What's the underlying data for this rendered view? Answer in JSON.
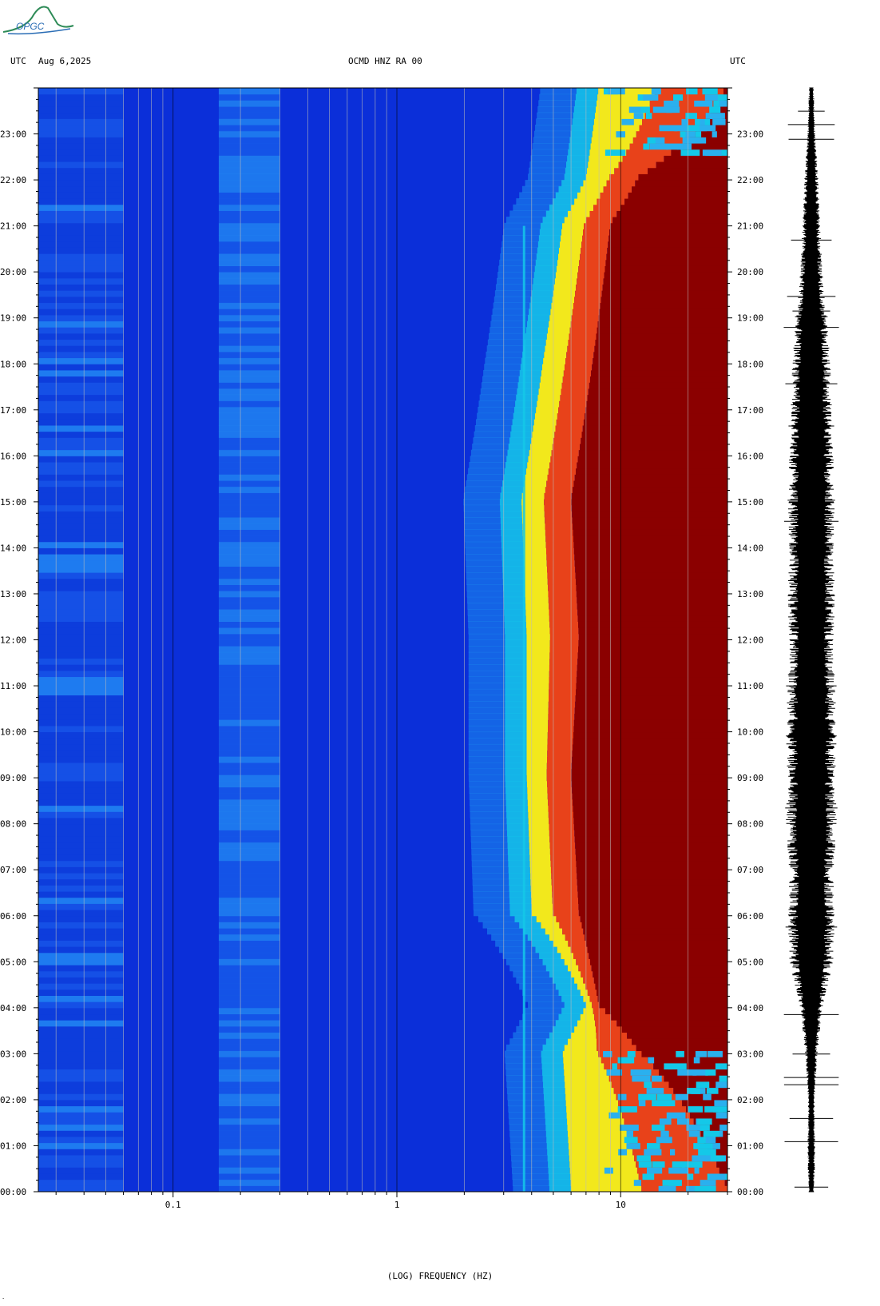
{
  "header": {
    "left_timezone": "UTC",
    "date": "Aug 6,2025",
    "station": "OCMD HNZ RA 00",
    "right_timezone": "UTC"
  },
  "logo": {
    "text": "OPGC"
  },
  "corner_mark": ".",
  "colors": {
    "background_blue": "#0b2fd9",
    "mid_cyan": "#14c8e8",
    "yellow": "#f2e81c",
    "dark_red": "#8b0000",
    "waveform": "#000000"
  },
  "chart_data": {
    "type": "heatmap",
    "title": "OCMD HNZ RA 00",
    "xlabel": "(LOG) FREQUENCY (HZ)",
    "ylabel": "",
    "x_scale": "log",
    "xlim": [
      0.025,
      30
    ],
    "x_ticks": [
      {
        "value": 0.1,
        "label": "0.1"
      },
      {
        "value": 1,
        "label": "1"
      },
      {
        "value": 10,
        "label": "10"
      }
    ],
    "ylim": [
      "00:00",
      "24:00"
    ],
    "y_ticks": [
      "00:00",
      "01:00",
      "02:00",
      "03:00",
      "04:00",
      "05:00",
      "06:00",
      "07:00",
      "08:00",
      "09:00",
      "10:00",
      "11:00",
      "12:00",
      "13:00",
      "14:00",
      "15:00",
      "16:00",
      "17:00",
      "18:00",
      "19:00",
      "20:00",
      "21:00",
      "22:00",
      "23:00"
    ],
    "grid": true,
    "noise_edge_hz_by_hour": [
      {
        "hour": 0,
        "low_hz": 6,
        "high_hz": 30
      },
      {
        "hour": 3,
        "low_hz": 5.5,
        "high_hz": 12
      },
      {
        "hour": 4,
        "low_hz": 7,
        "high_hz": 8
      },
      {
        "hour": 6,
        "low_hz": 4,
        "high_hz": 6.5
      },
      {
        "hour": 9,
        "low_hz": 3.8,
        "high_hz": 6
      },
      {
        "hour": 12,
        "low_hz": 3.8,
        "high_hz": 6.5
      },
      {
        "hour": 15,
        "low_hz": 3.6,
        "high_hz": 6
      },
      {
        "hour": 18,
        "low_hz": 4.5,
        "high_hz": 7.5
      },
      {
        "hour": 21,
        "low_hz": 5.5,
        "high_hz": 9
      },
      {
        "hour": 22,
        "low_hz": 7,
        "high_hz": 12
      },
      {
        "hour": 24,
        "low_hz": 8,
        "high_hz": 30
      }
    ],
    "persistent_line_hz": 3.7,
    "waveform_amplitude_by_hour": [
      {
        "hour": 0,
        "amp": 0.1
      },
      {
        "hour": 1,
        "amp": 0.12
      },
      {
        "hour": 2,
        "amp": 0.1
      },
      {
        "hour": 3,
        "amp": 0.2
      },
      {
        "hour": 4,
        "amp": 0.35
      },
      {
        "hour": 5,
        "amp": 0.7
      },
      {
        "hour": 6,
        "amp": 0.75
      },
      {
        "hour": 7,
        "amp": 0.7
      },
      {
        "hour": 8,
        "amp": 0.8
      },
      {
        "hour": 9,
        "amp": 0.75
      },
      {
        "hour": 10,
        "amp": 0.8
      },
      {
        "hour": 11,
        "amp": 0.75
      },
      {
        "hour": 12,
        "amp": 0.7
      },
      {
        "hour": 13,
        "amp": 0.75
      },
      {
        "hour": 14,
        "amp": 0.7
      },
      {
        "hour": 15,
        "amp": 0.75
      },
      {
        "hour": 16,
        "amp": 0.7
      },
      {
        "hour": 17,
        "amp": 0.65
      },
      {
        "hour": 18,
        "amp": 0.6
      },
      {
        "hour": 19,
        "amp": 0.5
      },
      {
        "hour": 20,
        "amp": 0.35
      },
      {
        "hour": 21,
        "amp": 0.28
      },
      {
        "hour": 22,
        "amp": 0.22
      },
      {
        "hour": 23,
        "amp": 0.12
      },
      {
        "hour": 24,
        "amp": 0.08
      }
    ]
  }
}
